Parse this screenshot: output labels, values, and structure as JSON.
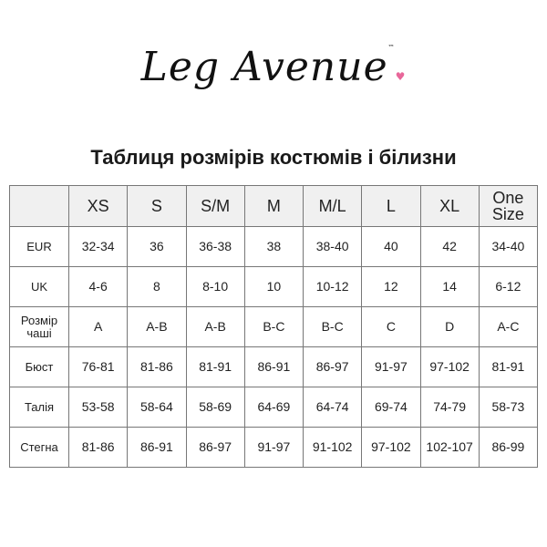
{
  "logo": {
    "text": "Leg Avenue",
    "trademark": "™",
    "accent_color": "#e8679a"
  },
  "title": "Таблиця розмірів костюмів і білизни",
  "table": {
    "headers": [
      "",
      "XS",
      "S",
      "S/M",
      "M",
      "M/L",
      "L",
      "XL",
      "One Size"
    ],
    "rows": [
      {
        "label": "EUR",
        "values": [
          "32-34",
          "36",
          "36-38",
          "38",
          "38-40",
          "40",
          "42",
          "34-40"
        ]
      },
      {
        "label": "UK",
        "values": [
          "4-6",
          "8",
          "8-10",
          "10",
          "10-12",
          "12",
          "14",
          "6-12"
        ]
      },
      {
        "label": "Розмір чаші",
        "values": [
          "A",
          "A-B",
          "A-B",
          "B-C",
          "B-C",
          "C",
          "D",
          "A-C"
        ]
      },
      {
        "label": "Бюст",
        "values": [
          "76-81",
          "81-86",
          "81-91",
          "86-91",
          "86-97",
          "91-97",
          "97-102",
          "81-91"
        ]
      },
      {
        "label": "Талія",
        "values": [
          "53-58",
          "58-64",
          "58-69",
          "64-69",
          "64-74",
          "69-74",
          "74-79",
          "58-73"
        ]
      },
      {
        "label": "Стегна",
        "values": [
          "81-86",
          "86-91",
          "86-97",
          "91-97",
          "91-102",
          "97-102",
          "102-107",
          "86-99"
        ]
      }
    ]
  }
}
